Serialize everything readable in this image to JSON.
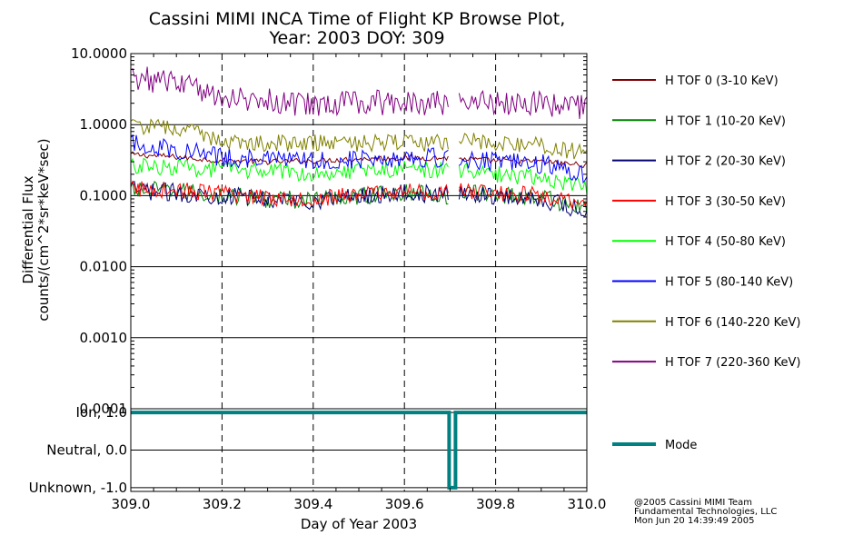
{
  "title_line1": "Cassini MIMI INCA Time of Flight KP Browse Plot,",
  "title_line2": "Year: 2003 DOY: 309",
  "credits": [
    "@2005 Cassini MIMI Team",
    "Fundamental Technologies, LLC",
    "Mon Jun 20 14:39:49 2005"
  ],
  "colors": {
    "tof0": "#800000",
    "tof1": "#008000",
    "tof2": "#000070",
    "tof3": "#ff0000",
    "tof4": "#00ff00",
    "tof5": "#0000ff",
    "tof6": "#808000",
    "tof7": "#800080",
    "mode": "#008080"
  },
  "chart_data": [
    {
      "type": "line",
      "title": "Cassini MIMI INCA Time of Flight KP Browse Plot, Year: 2003 DOY: 309",
      "xlabel": "Day of Year 2003",
      "ylabel_line1": "Differential Flux",
      "ylabel_line2": "counts/(cm^2*sr*keV*sec)",
      "yscale": "log",
      "ylim": [
        0.0001,
        10
      ],
      "xlim": [
        309.0,
        310.0
      ],
      "ytick_values": [
        10,
        1,
        0.1,
        0.01,
        0.001,
        0.0001
      ],
      "ytick_labels": [
        "10.0000",
        "1.0000",
        "0.1000",
        "0.0100",
        "0.0010",
        "0.0001"
      ],
      "xtick_values": [
        309.0,
        309.2,
        309.4,
        309.6,
        309.8,
        310.0
      ],
      "xtick_labels": [
        "309.0",
        "309.2",
        "309.4",
        "309.6",
        "309.8",
        "310.0"
      ],
      "gap": [
        309.696,
        309.72
      ],
      "x": [
        309.0,
        309.1,
        309.2,
        309.3,
        309.4,
        309.5,
        309.6,
        309.69,
        309.73,
        309.8,
        309.9,
        310.0
      ],
      "series": [
        {
          "name": "H TOF 0 (3-10 KeV)",
          "color_key": "tof0",
          "values": [
            0.38,
            0.35,
            0.31,
            0.3,
            0.31,
            0.33,
            0.34,
            0.34,
            0.33,
            0.31,
            0.3,
            0.27
          ]
        },
        {
          "name": "H TOF 1 (10-20 KeV)",
          "color_key": "tof1",
          "values": [
            0.12,
            0.115,
            0.1,
            0.09,
            0.085,
            0.1,
            0.11,
            0.1,
            0.11,
            0.105,
            0.095,
            0.065
          ]
        },
        {
          "name": "H TOF 2 (20-30 KeV)",
          "color_key": "tof2",
          "values": [
            0.12,
            0.11,
            0.1,
            0.09,
            0.085,
            0.1,
            0.11,
            0.1,
            0.11,
            0.1,
            0.09,
            0.06
          ]
        },
        {
          "name": "H TOF 3 (30-50 KeV)",
          "color_key": "tof3",
          "values": [
            0.125,
            0.12,
            0.105,
            0.095,
            0.09,
            0.105,
            0.115,
            0.11,
            0.115,
            0.11,
            0.1,
            0.07
          ]
        },
        {
          "name": "H TOF 4 (50-80 KeV)",
          "color_key": "tof4",
          "values": [
            0.26,
            0.25,
            0.23,
            0.22,
            0.21,
            0.23,
            0.24,
            0.23,
            0.22,
            0.2,
            0.18,
            0.13
          ]
        },
        {
          "name": "H TOF 5 (80-140 KeV)",
          "color_key": "tof5",
          "values": [
            0.55,
            0.45,
            0.35,
            0.32,
            0.31,
            0.33,
            0.35,
            0.34,
            0.33,
            0.3,
            0.28,
            0.2
          ]
        },
        {
          "name": "H TOF 6 (140-220 KeV)",
          "color_key": "tof6",
          "values": [
            0.95,
            0.9,
            0.6,
            0.55,
            0.55,
            0.55,
            0.55,
            0.55,
            0.6,
            0.55,
            0.5,
            0.4
          ]
        },
        {
          "name": "H TOF 7 (220-360 KeV)",
          "color_key": "tof7",
          "values": [
            4.5,
            4.0,
            2.5,
            2.2,
            1.9,
            2.0,
            2.1,
            2.0,
            2.2,
            2.1,
            2.0,
            1.7
          ]
        }
      ]
    },
    {
      "type": "line",
      "name": "Mode",
      "color_key": "mode",
      "ylim": [
        -1.1,
        1.1
      ],
      "ytick_values": [
        1.0,
        0.0,
        -1.0
      ],
      "ytick_labels": [
        "Ion, 1.0",
        "Neutral, 0.0",
        "Unknown, -1.0"
      ],
      "x": [
        309.0,
        309.698,
        309.698,
        309.712,
        309.712,
        310.0
      ],
      "values": [
        1.0,
        1.0,
        -1.0,
        -1.0,
        1.0,
        1.0
      ]
    }
  ]
}
